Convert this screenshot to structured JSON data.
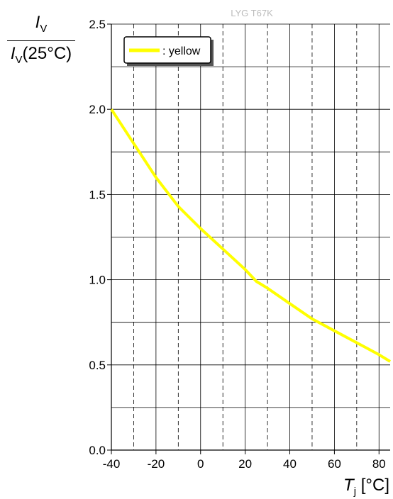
{
  "chart_data": {
    "type": "line",
    "title": "LYG T67K",
    "ylabel": {
      "main": "I",
      "sub": "V",
      "den_main": "I",
      "den_sub": "V",
      "den_suffix": "(25°C)"
    },
    "xlabel": {
      "main": "T",
      "sub": "j",
      "unit": "[°C]"
    },
    "xlim": [
      -40,
      85
    ],
    "ylim": [
      0,
      2.5
    ],
    "xticks": [
      -40,
      -20,
      0,
      20,
      40,
      60,
      80
    ],
    "xtick_labels": [
      "-40",
      "-20",
      "0",
      "20",
      "40",
      "60",
      "80"
    ],
    "yticks": [
      0,
      0.5,
      1.0,
      1.5,
      2.0,
      2.5
    ],
    "ytick_labels": [
      "0.0",
      "0.5",
      "1.0",
      "1.5",
      "2.0",
      "2.5"
    ],
    "grid": true,
    "legend_position": "top-left",
    "series": [
      {
        "name": ": yellow",
        "color": "#ffff00",
        "x": [
          -40,
          -30,
          -20,
          -10,
          0,
          10,
          20,
          25,
          30,
          40,
          50,
          60,
          70,
          80,
          85
        ],
        "y": [
          2.0,
          1.8,
          1.6,
          1.43,
          1.3,
          1.18,
          1.06,
          0.99,
          0.95,
          0.86,
          0.77,
          0.7,
          0.63,
          0.56,
          0.52
        ]
      }
    ]
  }
}
